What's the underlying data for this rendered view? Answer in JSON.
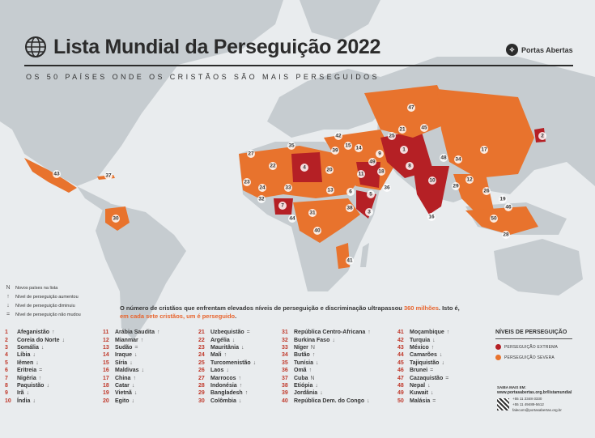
{
  "header": {
    "title": "Lista Mundial da Perseguição 2022",
    "subtitle": "OS 50 PAÍSES ONDE OS CRISTÃOS SÃO MAIS PERSEGUIDOS",
    "brand": "Portas Abertas"
  },
  "legend_keys": [
    {
      "icon": "new-icon",
      "symbol": "N",
      "label": "Novos países na lista"
    },
    {
      "icon": "arrow-up-icon",
      "symbol": "↑",
      "label": "Nível de perseguição aumentou"
    },
    {
      "icon": "arrow-down-icon",
      "symbol": "↓",
      "label": "Nível de perseguição diminuiu"
    },
    {
      "icon": "equal-icon",
      "symbol": "=",
      "label": "Nível de perseguição não mudou"
    }
  ],
  "blurb": {
    "part1": "O número de cristãos que enfrentam elevados níveis de perseguição e discriminação ultrapassou ",
    "highlight1": "360 milhões",
    "part2": ". Isto é, ",
    "highlight2": "em cada sete cristãos, um é perseguido",
    "part3": "."
  },
  "countries": [
    {
      "rank": "1",
      "name": "Afeganistão",
      "trend": "↑"
    },
    {
      "rank": "2",
      "name": "Coreia do Norte",
      "trend": "↓"
    },
    {
      "rank": "3",
      "name": "Somália",
      "trend": "↓"
    },
    {
      "rank": "4",
      "name": "Líbia",
      "trend": "↓"
    },
    {
      "rank": "5",
      "name": "Iêmen",
      "trend": "↓"
    },
    {
      "rank": "6",
      "name": "Eritreia",
      "trend": "="
    },
    {
      "rank": "7",
      "name": "Nigéria",
      "trend": "↑"
    },
    {
      "rank": "8",
      "name": "Paquistão",
      "trend": "↓"
    },
    {
      "rank": "9",
      "name": "Irã",
      "trend": "↓"
    },
    {
      "rank": "10",
      "name": "Índia",
      "trend": "↓"
    },
    {
      "rank": "11",
      "name": "Arábia Saudita",
      "trend": "↑"
    },
    {
      "rank": "12",
      "name": "Mianmar",
      "trend": "↑"
    },
    {
      "rank": "13",
      "name": "Sudão",
      "trend": "="
    },
    {
      "rank": "14",
      "name": "Iraque",
      "trend": "↓"
    },
    {
      "rank": "15",
      "name": "Síria",
      "trend": "↓"
    },
    {
      "rank": "16",
      "name": "Maldivas",
      "trend": "↓"
    },
    {
      "rank": "17",
      "name": "China",
      "trend": "↑"
    },
    {
      "rank": "18",
      "name": "Catar",
      "trend": "↓"
    },
    {
      "rank": "19",
      "name": "Vietnã",
      "trend": "↓"
    },
    {
      "rank": "20",
      "name": "Egito",
      "trend": "↓"
    },
    {
      "rank": "21",
      "name": "Uzbequistão",
      "trend": "="
    },
    {
      "rank": "22",
      "name": "Argélia",
      "trend": "↓"
    },
    {
      "rank": "23",
      "name": "Mauritânia",
      "trend": "↓"
    },
    {
      "rank": "24",
      "name": "Mali",
      "trend": "↑"
    },
    {
      "rank": "25",
      "name": "Turcomenistão",
      "trend": "↓"
    },
    {
      "rank": "26",
      "name": "Laos",
      "trend": "↓"
    },
    {
      "rank": "27",
      "name": "Marrocos",
      "trend": "↑"
    },
    {
      "rank": "28",
      "name": "Indonésia",
      "trend": "↑"
    },
    {
      "rank": "29",
      "name": "Bangladesh",
      "trend": "↑"
    },
    {
      "rank": "30",
      "name": "Colômbia",
      "trend": "↓"
    },
    {
      "rank": "31",
      "name": "República Centro-Africana",
      "trend": "↑"
    },
    {
      "rank": "32",
      "name": "Burkina Faso",
      "trend": "↓"
    },
    {
      "rank": "33",
      "name": "Níger",
      "trend": "N"
    },
    {
      "rank": "34",
      "name": "Butão",
      "trend": "↑"
    },
    {
      "rank": "35",
      "name": "Tunísia",
      "trend": "↓"
    },
    {
      "rank": "36",
      "name": "Omã",
      "trend": "↑"
    },
    {
      "rank": "37",
      "name": "Cuba",
      "trend": "N"
    },
    {
      "rank": "38",
      "name": "Etiópia",
      "trend": "↓"
    },
    {
      "rank": "39",
      "name": "Jordânia",
      "trend": "↓"
    },
    {
      "rank": "40",
      "name": "República Dem. do Congo",
      "trend": "↓"
    },
    {
      "rank": "41",
      "name": "Moçambique",
      "trend": "↑"
    },
    {
      "rank": "42",
      "name": "Turquia",
      "trend": "↓"
    },
    {
      "rank": "43",
      "name": "México",
      "trend": "↑"
    },
    {
      "rank": "44",
      "name": "Camarões",
      "trend": "↓"
    },
    {
      "rank": "45",
      "name": "Tajiquistão",
      "trend": "↓"
    },
    {
      "rank": "46",
      "name": "Brunei",
      "trend": "="
    },
    {
      "rank": "47",
      "name": "Cazaquistão",
      "trend": "="
    },
    {
      "rank": "48",
      "name": "Nepal",
      "trend": "↓"
    },
    {
      "rank": "49",
      "name": "Kuwait",
      "trend": "↓"
    },
    {
      "rank": "50",
      "name": "Malásia",
      "trend": "="
    }
  ],
  "levels": {
    "heading": "NÍVEIS DE PERSEGUIÇÃO",
    "extreme_label": "PERSEGUIÇÃO EXTREMA",
    "severe_label": "PERSEGUIÇÃO SEVERA",
    "extreme_color": "#b52025",
    "severe_color": "#e8732d"
  },
  "contact": {
    "label": "SAIBA MAIS EM:",
    "url": "www.portasabertas.org.br/listamundial",
    "phone1": "+55 11 2348-3330",
    "phone2": "+55 11 49489-5612",
    "email": "falecom@portasabertas.org.br"
  },
  "map_colors": {
    "land": "#c6ccd0",
    "water": "#e9ecee"
  }
}
